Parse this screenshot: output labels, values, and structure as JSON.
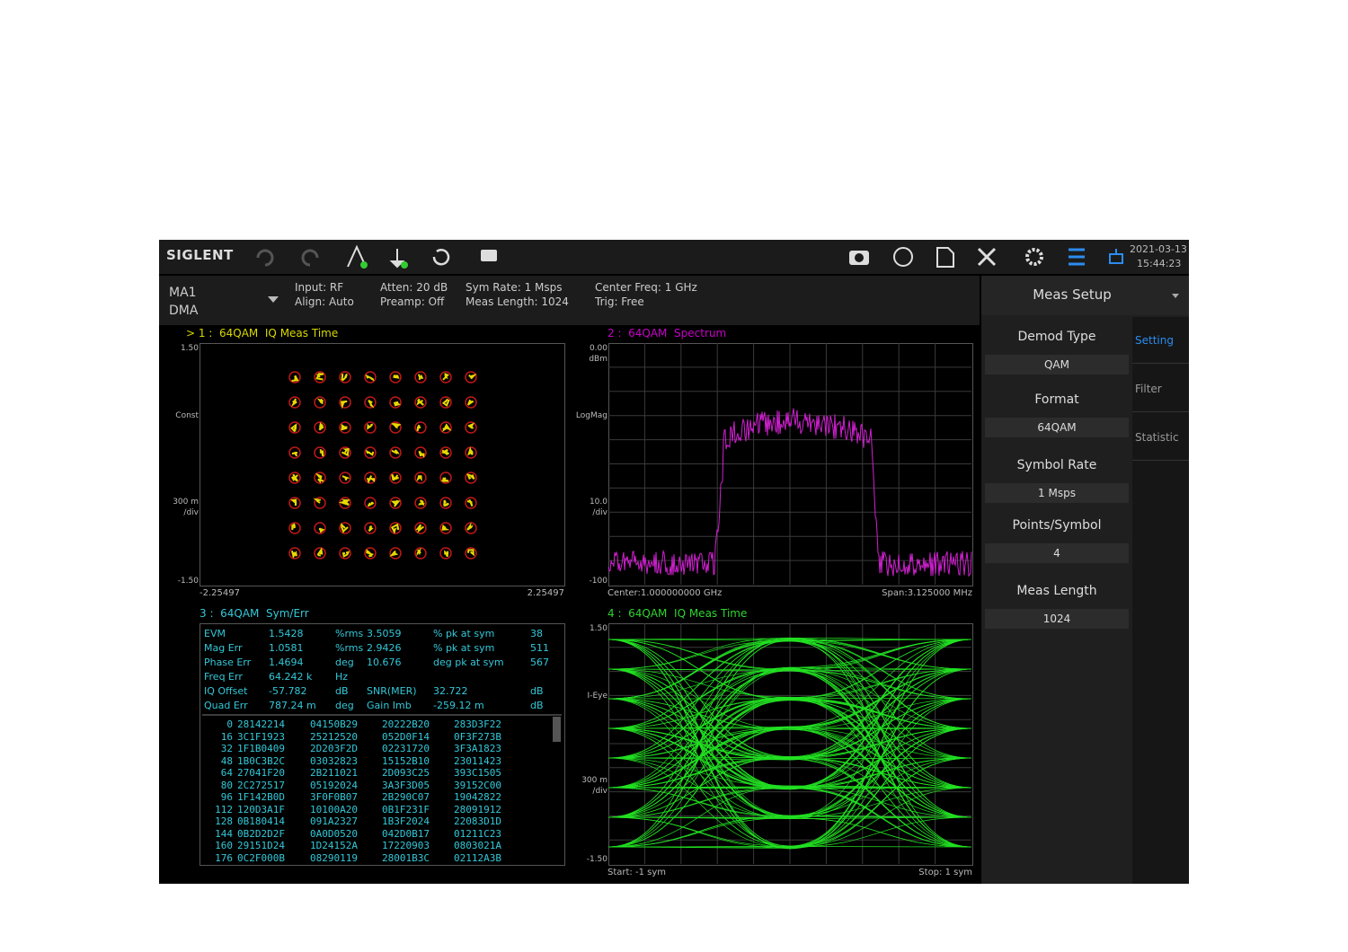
{
  "toolbar": {
    "brand": "SIGLENT",
    "date": "2021-03-13",
    "time": "15:44:23"
  },
  "status": {
    "mode": "MA1",
    "submode": "DMA",
    "info": [
      [
        "Input: RF",
        "Align: Auto"
      ],
      [
        "Atten: 20 dB",
        "Preamp: Off"
      ],
      [
        "Sym Rate: 1 Msps",
        "Meas Length: 1024"
      ],
      [
        "Center Freq: 1 GHz",
        "Trig: Free"
      ]
    ]
  },
  "window1": {
    "title": "> 1 :  64QAM  IQ Meas Time",
    "y_top": "1.50",
    "y_label": "Const",
    "y_scale": "300 m",
    "y_unit": "/div",
    "y_bottom": "-1.50",
    "x_left": "-2.25497",
    "x_right": "2.25497"
  },
  "window2": {
    "title": "2 :  64QAM  Spectrum",
    "y_top": "0.00",
    "y_top_unit": "dBm",
    "y_label": "LogMag",
    "y_scale": "10.0",
    "y_unit": "/div",
    "y_bottom": "-100",
    "x_left": "Center:1.000000000 GHz",
    "x_right": "Span:3.125000 MHz"
  },
  "window3": {
    "title": "3 :  64QAM  Sym/Err",
    "metrics": [
      [
        "EVM",
        "1.5428",
        "%rms",
        "3.5059",
        "% pk at sym",
        "38"
      ],
      [
        "Mag Err",
        "1.0581",
        "%rms",
        "2.9426",
        "% pk at sym",
        "511"
      ],
      [
        "Phase Err",
        "1.4694",
        "deg",
        "10.676",
        "deg pk at sym",
        "567"
      ],
      [
        "Freq Err",
        "64.242 k",
        "Hz"
      ],
      [
        "IQ Offset",
        "-57.782",
        "dB",
        "SNR(MER)",
        "32.722",
        "dB"
      ],
      [
        "Quad Err",
        "787.24 m",
        "deg",
        "Gain Imb",
        "-259.12 m",
        "dB"
      ]
    ],
    "symbols": [
      [
        "0",
        "28142214",
        "04150B29",
        "20222B20",
        "283D3F22"
      ],
      [
        "16",
        "3C1F1923",
        "25212520",
        "052D0F14",
        "0F3F273B"
      ],
      [
        "32",
        "1F1B0409",
        "2D203F2D",
        "02231720",
        "3F3A1823"
      ],
      [
        "48",
        "1B0C3B2C",
        "03032823",
        "15152B10",
        "23011423"
      ],
      [
        "64",
        "27041F20",
        "2B211021",
        "2D093C25",
        "393C1505"
      ],
      [
        "80",
        "2C272517",
        "05192024",
        "3A3F3D05",
        "39152C00"
      ],
      [
        "96",
        "1F142B0D",
        "3F0F0B07",
        "2B290C07",
        "19042822"
      ],
      [
        "112",
        "120D3A1F",
        "10100A20",
        "0B1F231F",
        "28091912"
      ],
      [
        "128",
        "0B180414",
        "091A2327",
        "1B3F2024",
        "22083D1D"
      ],
      [
        "144",
        "0B2D2D2F",
        "0A0D0520",
        "042D0B17",
        "01211C23"
      ],
      [
        "160",
        "29151D24",
        "1D24152A",
        "17220903",
        "0803021A"
      ],
      [
        "176",
        "0C2F000B",
        "08290119",
        "28001B3C",
        "02112A3B"
      ]
    ]
  },
  "window4": {
    "title": "4 :  64QAM  IQ Meas Time",
    "y_top": "1.50",
    "y_label": "I-Eye",
    "y_scale": "300 m",
    "y_unit": "/div",
    "y_bottom": "-1.50",
    "x_left": "Start: -1 sym",
    "x_right": "Stop: 1 sym"
  },
  "side_panel": {
    "title": "Meas Setup",
    "items": [
      {
        "label": "Demod Type",
        "value": "QAM"
      },
      {
        "label": "Format",
        "value": "64QAM"
      },
      {
        "label": "Symbol Rate",
        "value": "1 Msps"
      },
      {
        "label": "Points/Symbol",
        "value": "4"
      },
      {
        "label": "Meas Length",
        "value": "1024"
      }
    ],
    "tabs": [
      "Setting",
      "Filter",
      "Statistic"
    ]
  }
}
